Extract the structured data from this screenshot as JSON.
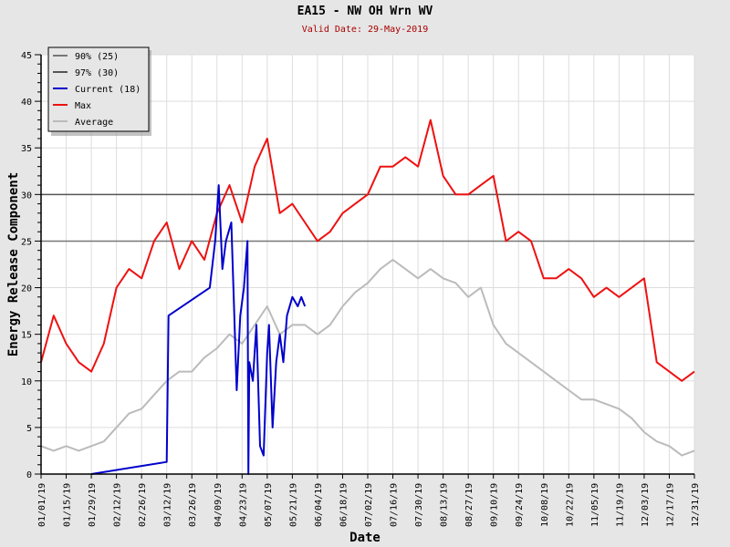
{
  "chart_data": {
    "type": "line",
    "title": "EA15 - NW OH Wrn WV",
    "subtitle": "Valid Date: 29-May-2019",
    "xlabel": "Date",
    "ylabel": "Energy Release Component",
    "ylim": [
      0,
      45
    ],
    "yticks": [
      0,
      5,
      10,
      15,
      20,
      25,
      30,
      35,
      40,
      45
    ],
    "xlim_days": [
      0,
      364
    ],
    "xticks": [
      "01/01/19",
      "01/15/19",
      "01/29/19",
      "02/12/19",
      "02/26/19",
      "03/12/19",
      "03/26/19",
      "04/09/19",
      "04/23/19",
      "05/07/19",
      "05/21/19",
      "06/04/19",
      "06/18/19",
      "07/02/19",
      "07/16/19",
      "07/30/19",
      "08/13/19",
      "08/27/19",
      "09/10/19",
      "09/24/19",
      "10/08/19",
      "10/22/19",
      "11/05/19",
      "11/19/19",
      "12/03/19",
      "12/17/19",
      "12/31/19"
    ],
    "grid": true,
    "legend_position": "top-left",
    "reference_lines": [
      {
        "name": "90% (25)",
        "value": 25,
        "color": "#777777"
      },
      {
        "name": "97% (30)",
        "value": 30,
        "color": "#555555"
      }
    ],
    "series": [
      {
        "name": "Current (18)",
        "color": "#0000cc",
        "x_days": [
          28,
          70,
          71,
          94,
          97,
          99,
          101,
          103,
          106,
          109,
          111,
          113,
          115,
          115.5,
          116,
          118,
          120,
          122,
          124,
          126,
          127,
          129,
          131,
          133,
          135,
          137,
          140,
          143,
          145,
          147
        ],
        "values": [
          0,
          1.3,
          17,
          20,
          25,
          31,
          22,
          25,
          27,
          9,
          17,
          20,
          25,
          0,
          12,
          10,
          16,
          3,
          2,
          13,
          16,
          5,
          12,
          15,
          12,
          17,
          19,
          18,
          19,
          18
        ]
      },
      {
        "name": "Max",
        "color": "#ee1111",
        "x_step_days": 7,
        "values": [
          12,
          17,
          14,
          12,
          11,
          14,
          20,
          22,
          21,
          25,
          27,
          22,
          25,
          23,
          28,
          31,
          27,
          33,
          36,
          28,
          29,
          27,
          25,
          26,
          28,
          29,
          30,
          33,
          33,
          34,
          33,
          38,
          32,
          30,
          30,
          31,
          32,
          25,
          26,
          25,
          21,
          21,
          22,
          21,
          19,
          20,
          19,
          20,
          21,
          12,
          11,
          10,
          11
        ]
      },
      {
        "name": "Average",
        "color": "#bbbbbb",
        "x_step_days": 7,
        "values": [
          3,
          2.5,
          3,
          2.5,
          3,
          3.5,
          5,
          6.5,
          7,
          8.5,
          10,
          11,
          11,
          12.5,
          13.5,
          15,
          14,
          16,
          18,
          15,
          16,
          16,
          15,
          16,
          18,
          19.5,
          20.5,
          22,
          23,
          22,
          21,
          22,
          21,
          20.5,
          19,
          20,
          16,
          14,
          13,
          12,
          11,
          10,
          9,
          8,
          8,
          7.5,
          7,
          6,
          4.5,
          3.5,
          3,
          2,
          2.5
        ]
      }
    ]
  }
}
